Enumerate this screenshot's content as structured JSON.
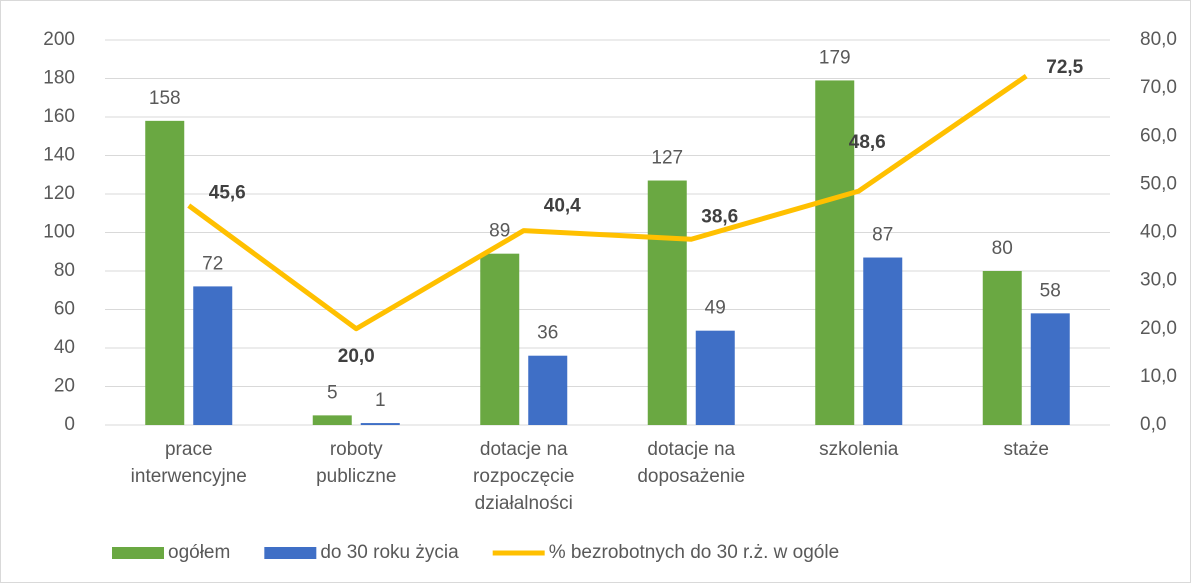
{
  "chart_data": {
    "type": "bar",
    "categories": [
      "prace\ninterwencyjne",
      "roboty\npubliczne",
      "dotacje na\nrozpoczęcie\ndziałalności",
      "dotacje na\ndoposażenie",
      "szkolenia",
      "staże"
    ],
    "series": [
      {
        "name": "ogółem",
        "color": "#6aa842",
        "values": [
          158,
          5,
          89,
          127,
          179,
          80
        ]
      },
      {
        "name": "do 30 roku życia",
        "color": "#3f6fc6",
        "values": [
          72,
          1,
          36,
          49,
          87,
          58
        ]
      },
      {
        "name": "% bezrobotnych do 30 r.ż. w ogóle",
        "color": "#ffc000",
        "type": "line",
        "axis": "y2",
        "values": [
          45.6,
          20.0,
          40.4,
          38.6,
          48.6,
          72.5
        ],
        "value_labels": [
          "45,6",
          "20,0",
          "40,4",
          "38,6",
          "48,6",
          "72,5"
        ]
      }
    ],
    "ylim": [
      0,
      200
    ],
    "yticks": [
      0,
      20,
      40,
      60,
      80,
      100,
      120,
      140,
      160,
      180,
      200
    ],
    "y2lim": [
      0,
      80
    ],
    "y2ticks": [
      {
        "value": 0,
        "label": "0,0"
      },
      {
        "value": 10,
        "label": "10,0"
      },
      {
        "value": 20,
        "label": "20,0"
      },
      {
        "value": 30,
        "label": "30,0"
      },
      {
        "value": 40,
        "label": "40,0"
      },
      {
        "value": 50,
        "label": "50,0"
      },
      {
        "value": 60,
        "label": "60,0"
      },
      {
        "value": 70,
        "label": "70,0"
      },
      {
        "value": 80,
        "label": "80,0"
      }
    ],
    "grid": true,
    "legend": "bottom"
  }
}
